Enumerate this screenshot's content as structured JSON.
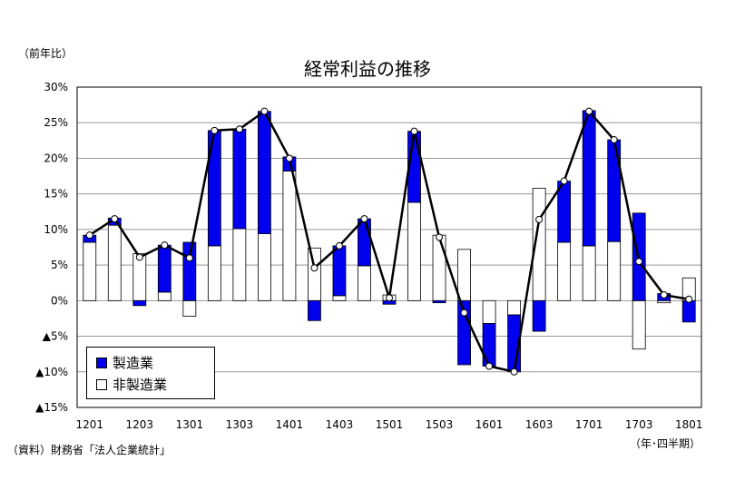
{
  "unit_label": "（前年比）",
  "source_label": "（資料）財務省「法人企業統計」",
  "period_label": "（年･四半期）",
  "colors": {
    "manufacturing": "#0000ee",
    "non_manufacturing": "#ffffff",
    "line": "#000000",
    "grid": "#999999"
  },
  "chart_data": {
    "type": "bar",
    "title": "経常利益の推移",
    "xlabel": "",
    "ylabel": "",
    "ylim": [
      -15,
      30
    ],
    "y_ticks": [
      30,
      25,
      20,
      15,
      10,
      5,
      0,
      -5,
      -10,
      -15
    ],
    "y_tick_labels": [
      "30%",
      "25%",
      "20%",
      "15%",
      "10%",
      "5%",
      "0%",
      "▲5%",
      "▲10%",
      "▲15%"
    ],
    "x_tick_labels": [
      "1201",
      "1203",
      "1301",
      "1303",
      "1401",
      "1403",
      "1501",
      "1503",
      "1601",
      "1603",
      "1701",
      "1703",
      "1801"
    ],
    "categories": [
      "1201",
      "1202",
      "1203",
      "1204",
      "1301",
      "1302",
      "1303",
      "1304",
      "1401",
      "1402",
      "1403",
      "1404",
      "1501",
      "1502",
      "1503",
      "1504",
      "1601",
      "1602",
      "1603",
      "1604",
      "1701",
      "1702",
      "1703",
      "1704",
      "1801"
    ],
    "series": [
      {
        "name": "製造業",
        "values": [
          1.0,
          1.0,
          -0.7,
          6.6,
          8.2,
          16.2,
          14.0,
          17.2,
          2.0,
          -2.8,
          7.0,
          6.6,
          -0.5,
          10.0,
          -0.3,
          -9.0,
          -6.0,
          -8.0,
          -4.3,
          8.6,
          19.0,
          14.3,
          12.3,
          1.0,
          -3.0
        ]
      },
      {
        "name": "非製造業",
        "values": [
          8.2,
          10.6,
          6.6,
          1.2,
          -2.2,
          7.7,
          10.1,
          9.4,
          18.2,
          7.4,
          0.7,
          4.9,
          0.8,
          13.8,
          9.2,
          7.2,
          -3.2,
          -2.0,
          15.8,
          8.2,
          7.7,
          8.3,
          -6.8,
          -0.3,
          3.2
        ]
      },
      {
        "name": "合計",
        "values": [
          9.2,
          11.5,
          6.1,
          7.8,
          6.0,
          23.9,
          24.1,
          26.6,
          20.0,
          4.6,
          7.7,
          11.5,
          0.4,
          23.8,
          8.9,
          -1.7,
          -9.2,
          -10.0,
          11.4,
          16.8,
          26.6,
          22.6,
          5.5,
          0.8,
          0.2
        ]
      }
    ],
    "legend": [
      "製造業",
      "非製造業"
    ],
    "legend_position": "bottom-left",
    "grid": true
  }
}
